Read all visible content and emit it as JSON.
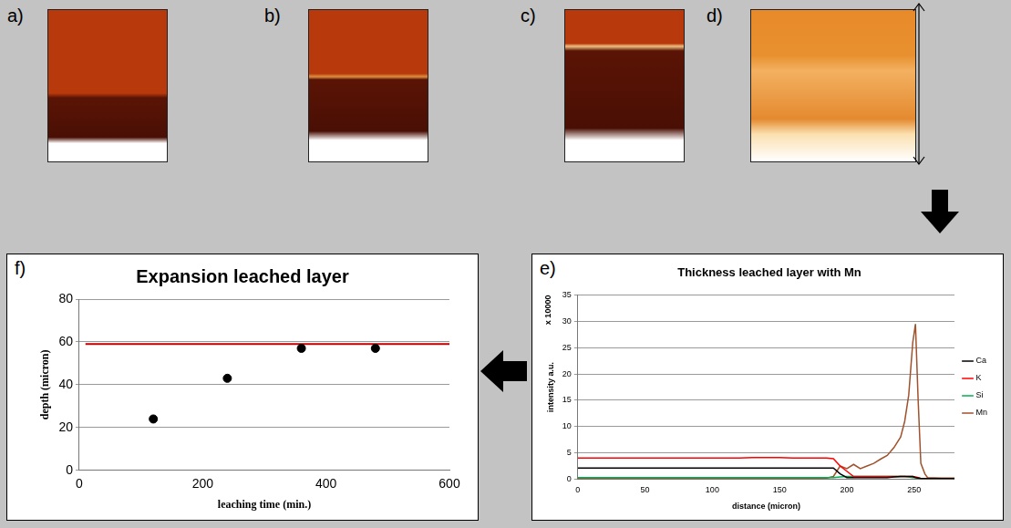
{
  "image_panels": [
    {
      "label": "a)"
    },
    {
      "label": "b)"
    },
    {
      "label": "c)"
    },
    {
      "label": "d)"
    }
  ],
  "chart_data": [
    {
      "panel_label": "f)",
      "type": "scatter",
      "title": "Expansion leached layer",
      "x_label": "leaching time (min.)",
      "y_label": "depth (micron)",
      "xlim": [
        0,
        600
      ],
      "xticks": [
        0,
        200,
        400,
        600
      ],
      "ylim": [
        0,
        80
      ],
      "yticks": [
        0,
        20,
        40,
        60,
        80
      ],
      "grid": true,
      "series": [
        {
          "type": "scatter",
          "color": "#000000",
          "marker": "circle",
          "x": [
            120,
            240,
            360,
            480
          ],
          "values": [
            24,
            43,
            57,
            57
          ]
        },
        {
          "type": "line",
          "color": "#c00000",
          "line_style": "solid",
          "x": [
            10,
            600
          ],
          "values": [
            59,
            59
          ]
        }
      ]
    },
    {
      "panel_label": "e)",
      "type": "line",
      "title": "Thickness leached layer with Mn",
      "annotation": "x 10000",
      "x_label": "distance (micron)",
      "y_label": "intensity a.u.",
      "xlim": [
        0,
        280
      ],
      "xticks": [
        0,
        50,
        100,
        150,
        200,
        250
      ],
      "ylim": [
        0,
        35
      ],
      "yticks": [
        0,
        5,
        10,
        15,
        20,
        25,
        30,
        35
      ],
      "grid": true,
      "legend": "right",
      "x": [
        0,
        10,
        20,
        30,
        40,
        50,
        60,
        70,
        80,
        90,
        100,
        110,
        120,
        130,
        140,
        150,
        160,
        170,
        180,
        185,
        190,
        195,
        200,
        205,
        210,
        215,
        220,
        225,
        230,
        235,
        240,
        243,
        246,
        249,
        251,
        253,
        255,
        258,
        260,
        270,
        280
      ],
      "series": [
        {
          "name": "Ca",
          "color": "#000000",
          "values": [
            2.1,
            2.1,
            2.1,
            2.1,
            2.1,
            2.1,
            2.1,
            2.1,
            2.1,
            2.1,
            2.1,
            2.1,
            2.1,
            2.1,
            2.1,
            2.1,
            2.1,
            2.1,
            2.1,
            2.1,
            2.1,
            1.0,
            0.3,
            0.3,
            0.3,
            0.3,
            0.3,
            0.3,
            0.3,
            0.4,
            0.5,
            0.5,
            0.5,
            0.5,
            0.3,
            0.2,
            0.1,
            0.1,
            0.1,
            0.1,
            0.1
          ]
        },
        {
          "name": "K",
          "color": "#ff0000",
          "values": [
            4.0,
            4.0,
            4.0,
            4.0,
            4.0,
            4.0,
            4.0,
            4.0,
            4.0,
            4.0,
            4.0,
            4.0,
            4.0,
            4.1,
            4.1,
            4.1,
            4.0,
            4.0,
            4.0,
            4.0,
            3.9,
            2.5,
            1.5,
            0.5,
            0.5,
            0.5,
            0.5,
            0.5,
            0.5,
            0.5,
            0.5,
            0.5,
            0.5,
            0.5,
            0.4,
            0.3,
            0.1,
            0.1,
            0.1,
            0.1,
            0.1
          ]
        },
        {
          "name": "Si",
          "color": "#00b050",
          "values": [
            0.3,
            0.3,
            0.3,
            0.3,
            0.3,
            0.3,
            0.3,
            0.3,
            0.3,
            0.3,
            0.3,
            0.3,
            0.3,
            0.3,
            0.3,
            0.3,
            0.3,
            0.3,
            0.3,
            0.3,
            0.3,
            0.4,
            0.5,
            0.5,
            0.5,
            0.5,
            0.5,
            0.5,
            0.5,
            0.5,
            0.5,
            0.5,
            0.4,
            0.3,
            0.3,
            0.2,
            0.1,
            0.1,
            0.1,
            0.1,
            0.1
          ]
        },
        {
          "name": "Mn",
          "color": "#a0522d",
          "values": [
            0.1,
            0.1,
            0.1,
            0.1,
            0.1,
            0.1,
            0.1,
            0.1,
            0.1,
            0.1,
            0.1,
            0.1,
            0.1,
            0.1,
            0.1,
            0.1,
            0.1,
            0.1,
            0.1,
            0.2,
            0.5,
            2.5,
            2.0,
            2.8,
            2.0,
            2.5,
            3.0,
            3.8,
            4.5,
            6.0,
            8.0,
            11.0,
            16.0,
            26.0,
            29.5,
            15.0,
            3.0,
            1.0,
            0.3,
            0.2,
            0.2
          ]
        }
      ]
    }
  ]
}
